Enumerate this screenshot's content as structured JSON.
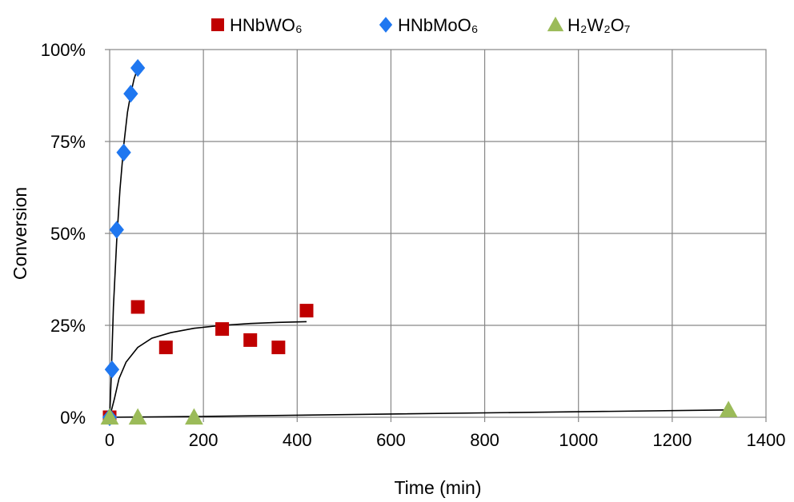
{
  "chart_data": {
    "type": "scatter",
    "title": "",
    "xlabel": "Time (min)",
    "ylabel": "Conversion",
    "xlim": [
      0,
      1400
    ],
    "ylim": [
      0,
      100
    ],
    "x_ticks": [
      0,
      200,
      400,
      600,
      800,
      1000,
      1200,
      1400
    ],
    "x_tick_labels": [
      "0",
      "200",
      "400",
      "600",
      "800",
      "1000",
      "1200",
      "1400"
    ],
    "y_ticks": [
      0,
      25,
      50,
      75,
      100
    ],
    "y_tick_labels": [
      "0%",
      "25%",
      "50%",
      "75%",
      "100%"
    ],
    "grid": true,
    "legend_position": "top",
    "series": [
      {
        "name": "HNbWO₆",
        "marker": "square",
        "color": "#C00000",
        "points": [
          [
            0,
            0
          ],
          [
            60,
            30
          ],
          [
            120,
            19
          ],
          [
            240,
            24
          ],
          [
            300,
            21
          ],
          [
            360,
            19
          ],
          [
            420,
            29
          ]
        ],
        "fit": [
          [
            0,
            0
          ],
          [
            10,
            5
          ],
          [
            20,
            10.5
          ],
          [
            35,
            15
          ],
          [
            60,
            19
          ],
          [
            90,
            21.5
          ],
          [
            130,
            23
          ],
          [
            180,
            24.2
          ],
          [
            240,
            25
          ],
          [
            300,
            25.5
          ],
          [
            360,
            25.8
          ],
          [
            420,
            26
          ]
        ]
      },
      {
        "name": "HNbMoO₆",
        "marker": "diamond",
        "color": "#1F77F0",
        "points": [
          [
            0,
            0
          ],
          [
            5,
            13
          ],
          [
            15,
            51
          ],
          [
            30,
            72
          ],
          [
            45,
            88
          ],
          [
            60,
            95
          ]
        ],
        "fit": [
          [
            0,
            0
          ],
          [
            3,
            10
          ],
          [
            8,
            30
          ],
          [
            15,
            48
          ],
          [
            22,
            62
          ],
          [
            30,
            74
          ],
          [
            38,
            83
          ],
          [
            45,
            88
          ],
          [
            52,
            92
          ],
          [
            60,
            95
          ]
        ]
      },
      {
        "name": "H₂W₂O₇",
        "marker": "triangle",
        "color": "#9BBB59",
        "points": [
          [
            0,
            0
          ],
          [
            60,
            0
          ],
          [
            180,
            0
          ],
          [
            1320,
            2
          ]
        ],
        "fit": [
          [
            0,
            0
          ],
          [
            180,
            0.2
          ],
          [
            600,
            0.9
          ],
          [
            1000,
            1.5
          ],
          [
            1320,
            2
          ]
        ]
      }
    ]
  }
}
